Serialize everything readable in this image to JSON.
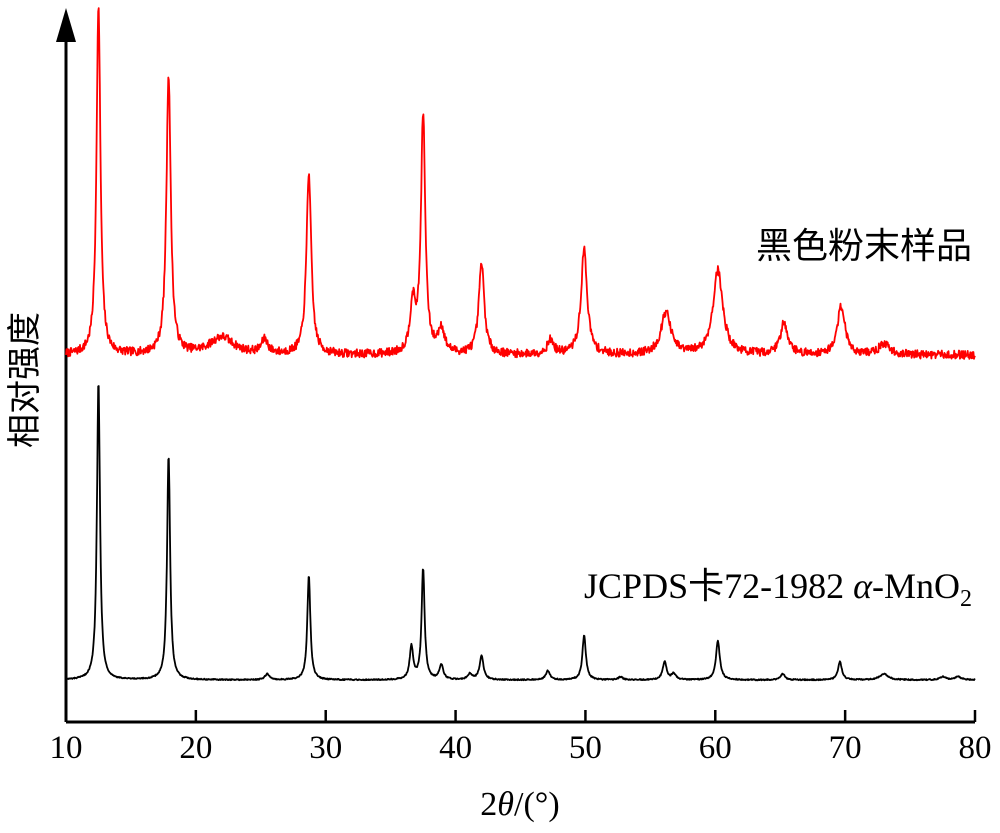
{
  "chart_data": {
    "type": "line",
    "title": "",
    "xlabel_parts": {
      "prefix": "2",
      "symbol": "θ",
      "suffix": "/(°)"
    },
    "ylabel": "相对强度",
    "xlim": [
      10,
      80
    ],
    "xticks": [
      10,
      20,
      30,
      40,
      50,
      60,
      70,
      80
    ],
    "y_ticks_shown": false,
    "grid": false,
    "series": [
      {
        "name": "黑色粉末样品",
        "color": "#ff0000",
        "baseline": 0.12,
        "noise": 0.012,
        "peaks": [
          {
            "x": 12.5,
            "h": 1.0,
            "w": 0.18
          },
          {
            "x": 17.9,
            "h": 0.8,
            "w": 0.2
          },
          {
            "x": 22.0,
            "h": 0.05,
            "w": 1.1
          },
          {
            "x": 25.3,
            "h": 0.04,
            "w": 0.3
          },
          {
            "x": 28.7,
            "h": 0.52,
            "w": 0.22
          },
          {
            "x": 36.7,
            "h": 0.14,
            "w": 0.25
          },
          {
            "x": 37.5,
            "h": 0.68,
            "w": 0.2
          },
          {
            "x": 38.9,
            "h": 0.07,
            "w": 0.3
          },
          {
            "x": 42.0,
            "h": 0.26,
            "w": 0.25
          },
          {
            "x": 47.3,
            "h": 0.04,
            "w": 0.3
          },
          {
            "x": 49.9,
            "h": 0.3,
            "w": 0.28
          },
          {
            "x": 56.2,
            "h": 0.12,
            "w": 0.45
          },
          {
            "x": 60.2,
            "h": 0.24,
            "w": 0.45
          },
          {
            "x": 65.3,
            "h": 0.09,
            "w": 0.35
          },
          {
            "x": 69.7,
            "h": 0.14,
            "w": 0.35
          },
          {
            "x": 73.0,
            "h": 0.03,
            "w": 0.5
          }
        ]
      },
      {
        "name": "JCPDS卡72-1982 α-MnO₂",
        "name_parts": {
          "main": "JCPDS卡72-1982 ",
          "alpha": "α",
          "rest": "-MnO",
          "subscript": "2"
        },
        "color": "#000000",
        "baseline": 0.0,
        "noise": 0.002,
        "peaks": [
          {
            "x": 12.5,
            "h": 1.0,
            "w": 0.14
          },
          {
            "x": 17.9,
            "h": 0.75,
            "w": 0.14
          },
          {
            "x": 25.5,
            "h": 0.02,
            "w": 0.2
          },
          {
            "x": 28.7,
            "h": 0.35,
            "w": 0.14
          },
          {
            "x": 36.6,
            "h": 0.11,
            "w": 0.16
          },
          {
            "x": 37.5,
            "h": 0.37,
            "w": 0.14
          },
          {
            "x": 38.9,
            "h": 0.05,
            "w": 0.18
          },
          {
            "x": 41.1,
            "h": 0.02,
            "w": 0.2
          },
          {
            "x": 42.0,
            "h": 0.08,
            "w": 0.18
          },
          {
            "x": 47.1,
            "h": 0.03,
            "w": 0.2
          },
          {
            "x": 49.9,
            "h": 0.15,
            "w": 0.16
          },
          {
            "x": 52.7,
            "h": 0.01,
            "w": 0.2
          },
          {
            "x": 56.1,
            "h": 0.06,
            "w": 0.18
          },
          {
            "x": 56.8,
            "h": 0.02,
            "w": 0.2
          },
          {
            "x": 60.2,
            "h": 0.13,
            "w": 0.18
          },
          {
            "x": 65.2,
            "h": 0.02,
            "w": 0.2
          },
          {
            "x": 69.6,
            "h": 0.06,
            "w": 0.18
          },
          {
            "x": 73.0,
            "h": 0.02,
            "w": 0.4
          },
          {
            "x": 77.5,
            "h": 0.01,
            "w": 0.3
          },
          {
            "x": 78.7,
            "h": 0.01,
            "w": 0.3
          }
        ]
      }
    ]
  }
}
